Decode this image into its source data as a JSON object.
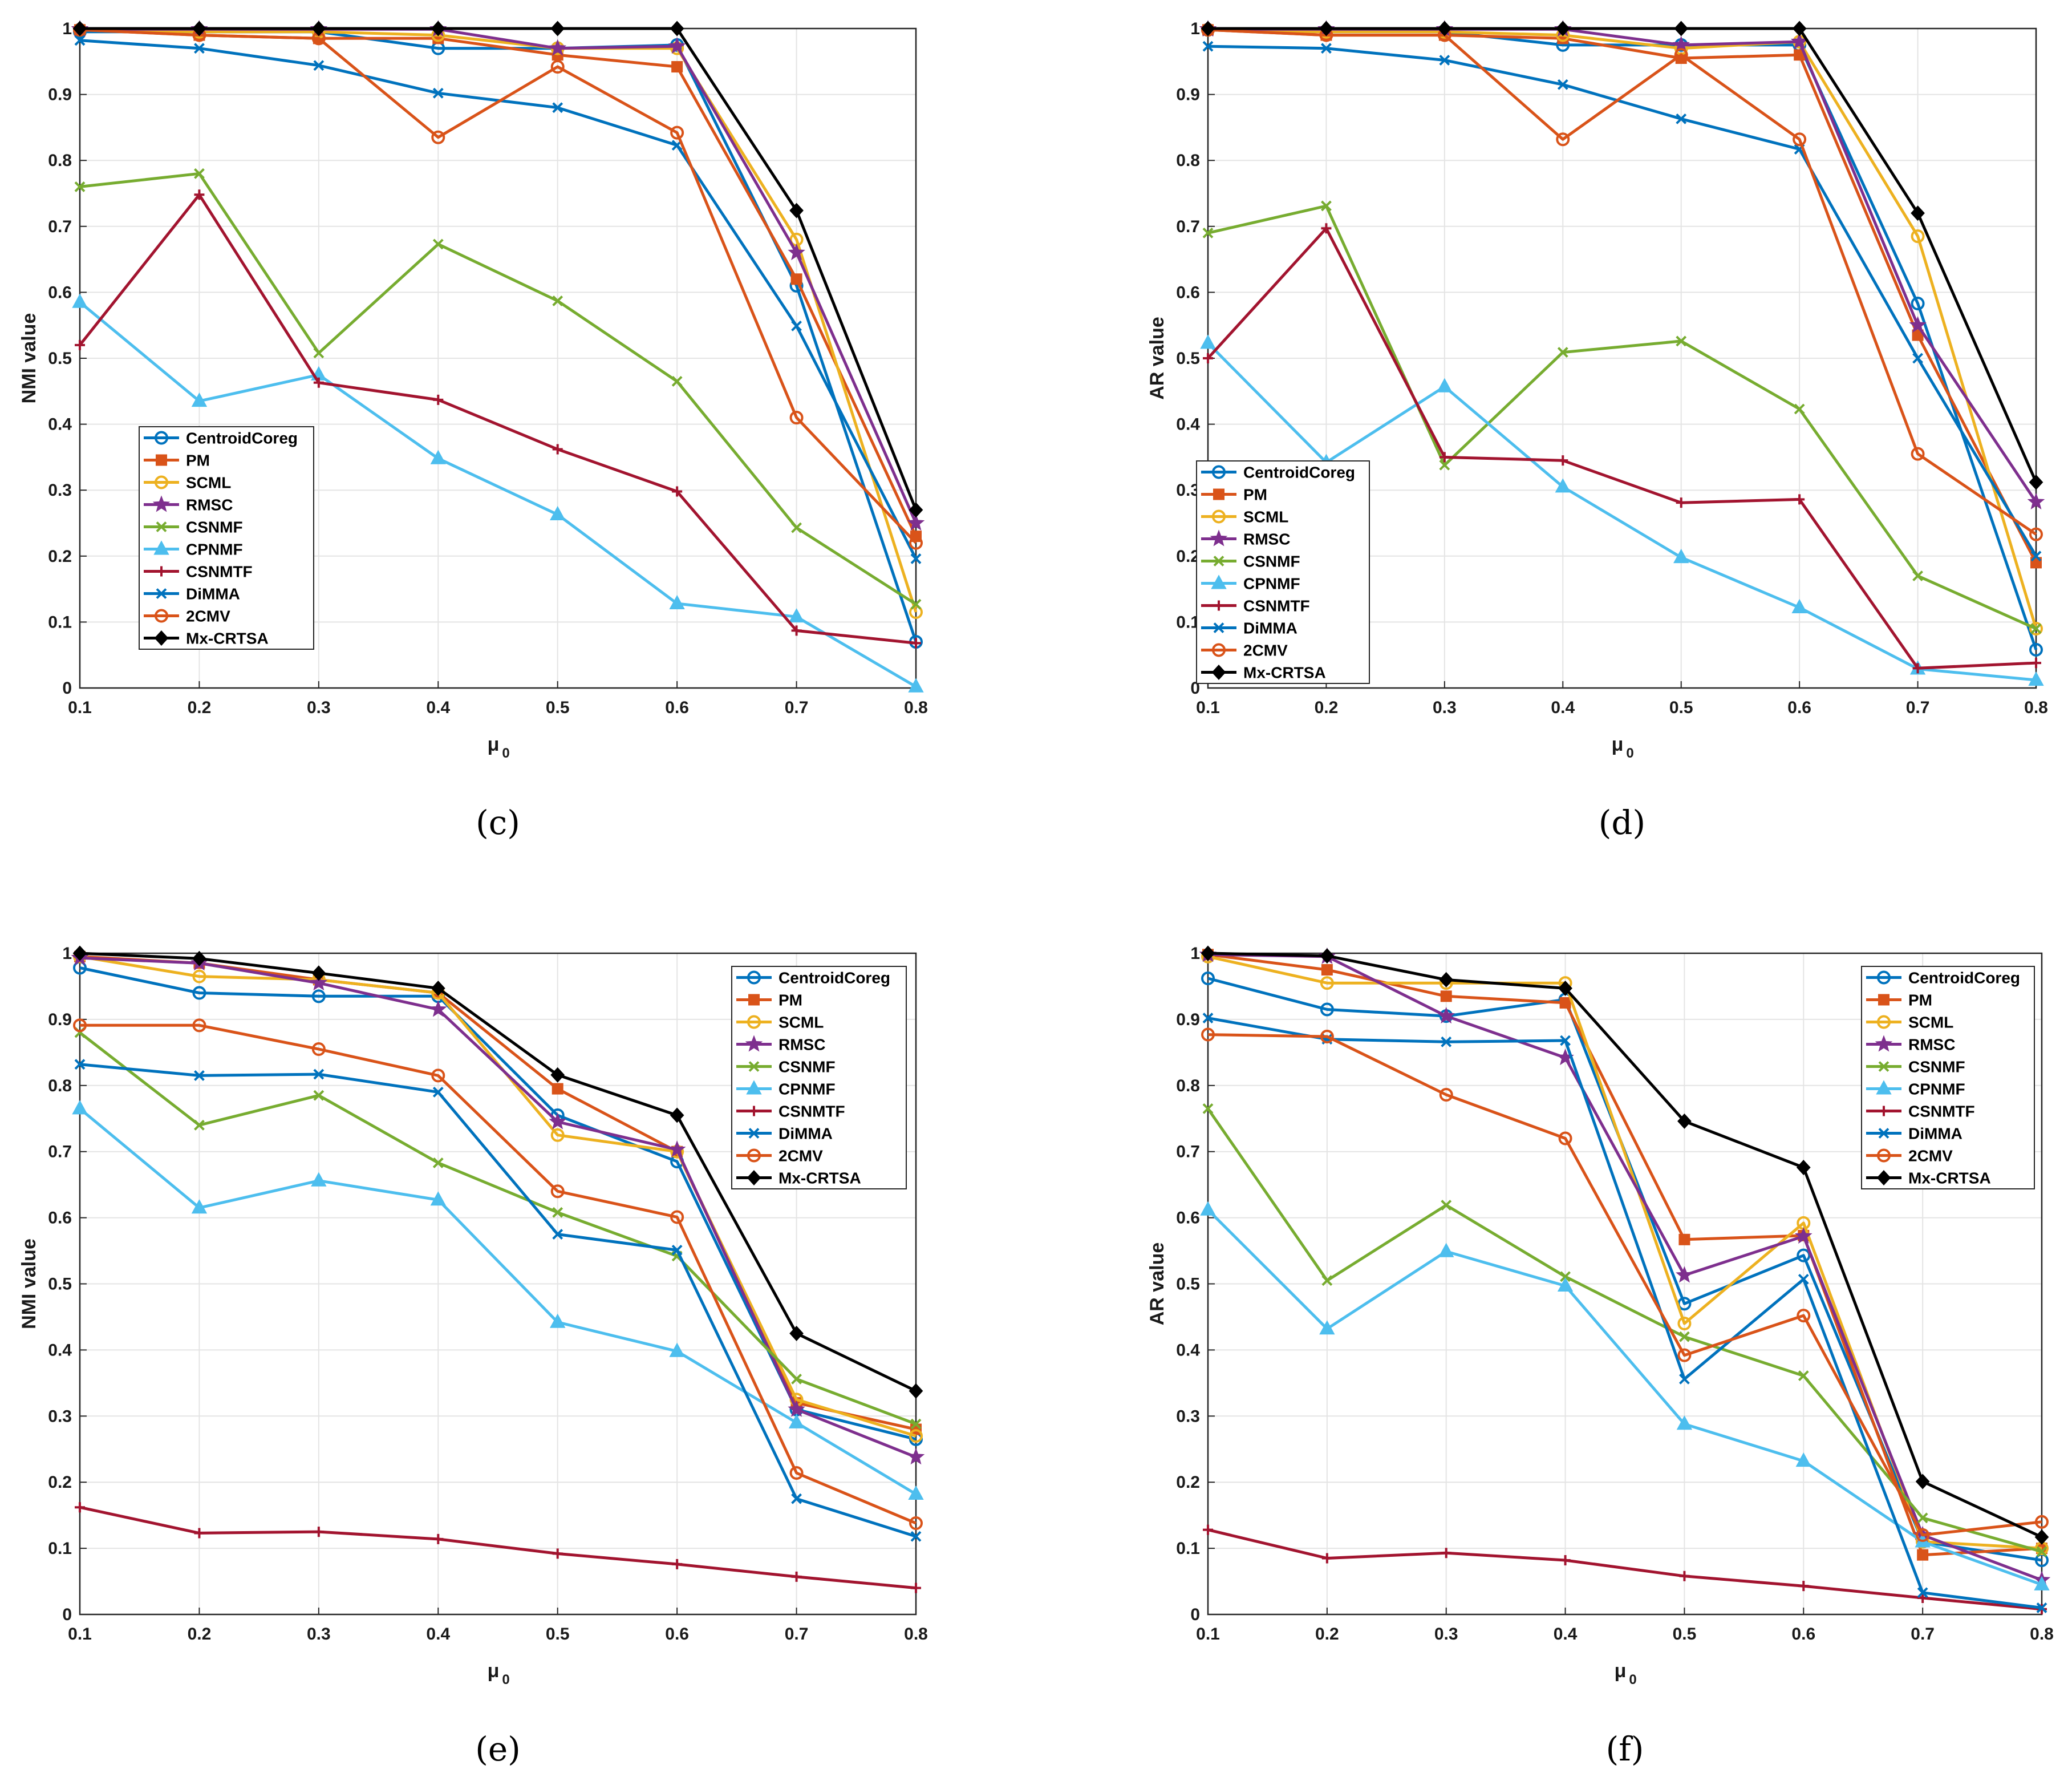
{
  "figure": {
    "series_names": [
      "CentroidCoreg",
      "PM",
      "SCML",
      "RMSC",
      "CSNMF",
      "CPNMF",
      "CSNMTF",
      "DiMMA",
      "2CMV",
      "Mx-CRTSA"
    ],
    "series_colors": [
      "#0072BD",
      "#D95319",
      "#EDB120",
      "#7E2F8E",
      "#77AC30",
      "#4DBEEE",
      "#A2142F",
      "#0072BD",
      "#D95319",
      "#000000"
    ],
    "series_markers": [
      "circle",
      "square",
      "circle",
      "star",
      "x",
      "triangle",
      "plus",
      "x",
      "circle",
      "diamond"
    ],
    "x_axis_label": "μ",
    "x_axis_subscript": "0"
  },
  "chart_data": [
    {
      "type": "line",
      "caption": "(c)",
      "ylabel": "NMI value",
      "legend_position": "left",
      "x": [
        0.1,
        0.2,
        0.3,
        0.4,
        0.5,
        0.6,
        0.7,
        0.8
      ],
      "xticks": [
        "0.1",
        "0.2",
        "0.3",
        "0.4",
        "0.5",
        "0.6",
        "0.7",
        "0.8"
      ],
      "yticks": [
        "0",
        "0.1",
        "0.2",
        "0.3",
        "0.4",
        "0.5",
        "0.6",
        "0.7",
        "0.8",
        "0.9",
        "1"
      ],
      "xlim": [
        0.1,
        0.8
      ],
      "ylim": [
        0,
        1
      ],
      "series": [
        {
          "name": "CentroidCoreg",
          "values": [
            0.995,
            0.995,
            0.995,
            0.97,
            0.97,
            0.975,
            0.61,
            0.07
          ]
        },
        {
          "name": "PM",
          "values": [
            0.998,
            0.99,
            0.985,
            0.985,
            0.96,
            0.942,
            0.62,
            0.23
          ]
        },
        {
          "name": "SCML",
          "values": [
            0.998,
            0.995,
            0.995,
            0.99,
            0.97,
            0.97,
            0.68,
            0.115
          ]
        },
        {
          "name": "RMSC",
          "values": [
            0.999,
            0.999,
            0.999,
            0.999,
            0.97,
            0.973,
            0.66,
            0.25
          ]
        },
        {
          "name": "CSNMF",
          "values": [
            0.76,
            0.78,
            0.508,
            0.673,
            0.587,
            0.465,
            0.243,
            0.127
          ]
        },
        {
          "name": "CPNMF",
          "values": [
            0.585,
            0.435,
            0.475,
            0.348,
            0.263,
            0.128,
            0.108,
            0.002
          ]
        },
        {
          "name": "CSNMTF",
          "values": [
            0.52,
            0.748,
            0.463,
            0.437,
            0.362,
            0.298,
            0.087,
            0.068
          ]
        },
        {
          "name": "DiMMA",
          "values": [
            0.982,
            0.97,
            0.944,
            0.902,
            0.88,
            0.823,
            0.549,
            0.196
          ]
        },
        {
          "name": "2CMV",
          "values": [
            0.998,
            0.99,
            0.985,
            0.835,
            0.942,
            0.842,
            0.41,
            0.22
          ]
        },
        {
          "name": "Mx-CRTSA",
          "values": [
            1,
            1,
            1,
            1,
            1,
            1,
            0.724,
            0.27
          ]
        }
      ]
    },
    {
      "type": "line",
      "caption": "(d)",
      "ylabel": "AR value",
      "legend_position": "left",
      "x": [
        0.1,
        0.2,
        0.3,
        0.4,
        0.5,
        0.6,
        0.7,
        0.8
      ],
      "xticks": [
        "0.1",
        "0.2",
        "0.3",
        "0.4",
        "0.5",
        "0.6",
        "0.7",
        "0.8"
      ],
      "yticks": [
        "0",
        "0.1",
        "0.2",
        "0.3",
        "0.4",
        "0.5",
        "0.6",
        "0.7",
        "0.8",
        "0.9",
        "1"
      ],
      "xlim": [
        0.1,
        0.8
      ],
      "ylim": [
        0,
        1
      ],
      "series": [
        {
          "name": "CentroidCoreg",
          "values": [
            0.998,
            0.995,
            0.995,
            0.975,
            0.975,
            0.975,
            0.583,
            0.058
          ]
        },
        {
          "name": "PM",
          "values": [
            0.998,
            0.99,
            0.99,
            0.985,
            0.955,
            0.96,
            0.535,
            0.19
          ]
        },
        {
          "name": "SCML",
          "values": [
            0.998,
            0.995,
            0.995,
            0.99,
            0.97,
            0.98,
            0.685,
            0.09
          ]
        },
        {
          "name": "RMSC",
          "values": [
            0.999,
            0.999,
            0.999,
            0.999,
            0.975,
            0.98,
            0.55,
            0.282
          ]
        },
        {
          "name": "CSNMF",
          "values": [
            0.69,
            0.731,
            0.338,
            0.509,
            0.526,
            0.423,
            0.17,
            0.09
          ]
        },
        {
          "name": "CPNMF",
          "values": [
            0.523,
            0.342,
            0.457,
            0.305,
            0.198,
            0.122,
            0.029,
            0.012
          ]
        },
        {
          "name": "CSNMTF",
          "values": [
            0.5,
            0.697,
            0.35,
            0.345,
            0.281,
            0.286,
            0.03,
            0.038
          ]
        },
        {
          "name": "DiMMA",
          "values": [
            0.973,
            0.97,
            0.952,
            0.915,
            0.863,
            0.817,
            0.5,
            0.2
          ]
        },
        {
          "name": "2CMV",
          "values": [
            0.998,
            0.99,
            0.99,
            0.832,
            0.96,
            0.832,
            0.355,
            0.233
          ]
        },
        {
          "name": "Mx-CRTSA",
          "values": [
            1,
            1,
            1,
            1,
            1,
            1,
            0.72,
            0.312
          ]
        }
      ]
    },
    {
      "type": "line",
      "caption": "(e)",
      "ylabel": "NMI value",
      "legend_position": "top-right",
      "x": [
        0.1,
        0.2,
        0.3,
        0.4,
        0.5,
        0.6,
        0.7,
        0.8
      ],
      "xticks": [
        "0.1",
        "0.2",
        "0.3",
        "0.4",
        "0.5",
        "0.6",
        "0.7",
        "0.8"
      ],
      "yticks": [
        "0",
        "0.1",
        "0.2",
        "0.3",
        "0.4",
        "0.5",
        "0.6",
        "0.7",
        "0.8",
        "0.9",
        "1"
      ],
      "xlim": [
        0.1,
        0.8
      ],
      "ylim": [
        0,
        1
      ],
      "series": [
        {
          "name": "CentroidCoreg",
          "values": [
            0.978,
            0.94,
            0.935,
            0.935,
            0.755,
            0.685,
            0.31,
            0.265
          ]
        },
        {
          "name": "PM",
          "values": [
            0.995,
            0.985,
            0.96,
            0.94,
            0.795,
            0.7,
            0.32,
            0.28
          ]
        },
        {
          "name": "SCML",
          "values": [
            0.995,
            0.965,
            0.96,
            0.94,
            0.725,
            0.7,
            0.325,
            0.27
          ]
        },
        {
          "name": "RMSC",
          "values": [
            0.993,
            0.985,
            0.955,
            0.915,
            0.745,
            0.703,
            0.31,
            0.238
          ]
        },
        {
          "name": "CSNMF",
          "values": [
            0.88,
            0.74,
            0.785,
            0.683,
            0.608,
            0.542,
            0.356,
            0.288
          ]
        },
        {
          "name": "CPNMF",
          "values": [
            0.765,
            0.615,
            0.656,
            0.627,
            0.442,
            0.398,
            0.29,
            0.182
          ]
        },
        {
          "name": "CSNMTF",
          "values": [
            0.162,
            0.123,
            0.125,
            0.114,
            0.092,
            0.076,
            0.057,
            0.04
          ]
        },
        {
          "name": "DiMMA",
          "values": [
            0.832,
            0.815,
            0.817,
            0.79,
            0.575,
            0.551,
            0.175,
            0.118
          ]
        },
        {
          "name": "2CMV",
          "values": [
            0.891,
            0.891,
            0.855,
            0.815,
            0.64,
            0.601,
            0.214,
            0.138
          ]
        },
        {
          "name": "Mx-CRTSA",
          "values": [
            1,
            0.992,
            0.97,
            0.947,
            0.816,
            0.755,
            0.425,
            0.338
          ]
        }
      ]
    },
    {
      "type": "line",
      "caption": "(f)",
      "ylabel": "AR value",
      "legend_position": "top-right",
      "x": [
        0.1,
        0.2,
        0.3,
        0.4,
        0.5,
        0.6,
        0.7,
        0.8
      ],
      "xticks": [
        "0.1",
        "0.2",
        "0.3",
        "0.4",
        "0.5",
        "0.6",
        "0.7",
        "0.8"
      ],
      "yticks": [
        "0",
        "0.1",
        "0.2",
        "0.3",
        "0.4",
        "0.5",
        "0.6",
        "0.7",
        "0.8",
        "0.9",
        "1"
      ],
      "xlim": [
        0.1,
        0.8
      ],
      "ylim": [
        0,
        1
      ],
      "series": [
        {
          "name": "CentroidCoreg",
          "values": [
            0.962,
            0.915,
            0.905,
            0.93,
            0.47,
            0.543,
            0.11,
            0.082
          ]
        },
        {
          "name": "PM",
          "values": [
            0.998,
            0.975,
            0.935,
            0.925,
            0.567,
            0.573,
            0.09,
            0.1
          ]
        },
        {
          "name": "SCML",
          "values": [
            0.995,
            0.955,
            0.955,
            0.955,
            0.44,
            0.592,
            0.11,
            0.1
          ]
        },
        {
          "name": "RMSC",
          "values": [
            0.998,
            0.995,
            0.905,
            0.842,
            0.513,
            0.572,
            0.12,
            0.052
          ]
        },
        {
          "name": "CSNMF",
          "values": [
            0.765,
            0.505,
            0.619,
            0.511,
            0.42,
            0.361,
            0.146,
            0.095
          ]
        },
        {
          "name": "CPNMF",
          "values": [
            0.612,
            0.432,
            0.549,
            0.497,
            0.288,
            0.232,
            0.11,
            0.045
          ]
        },
        {
          "name": "CSNMTF",
          "values": [
            0.128,
            0.085,
            0.093,
            0.082,
            0.058,
            0.043,
            0.025,
            0.008
          ]
        },
        {
          "name": "DiMMA",
          "values": [
            0.902,
            0.87,
            0.866,
            0.868,
            0.356,
            0.507,
            0.033,
            0.01
          ]
        },
        {
          "name": "2CMV",
          "values": [
            0.877,
            0.874,
            0.786,
            0.72,
            0.392,
            0.452,
            0.12,
            0.14
          ]
        },
        {
          "name": "Mx-CRTSA",
          "values": [
            1,
            0.996,
            0.96,
            0.947,
            0.746,
            0.676,
            0.201,
            0.117
          ]
        }
      ]
    }
  ]
}
